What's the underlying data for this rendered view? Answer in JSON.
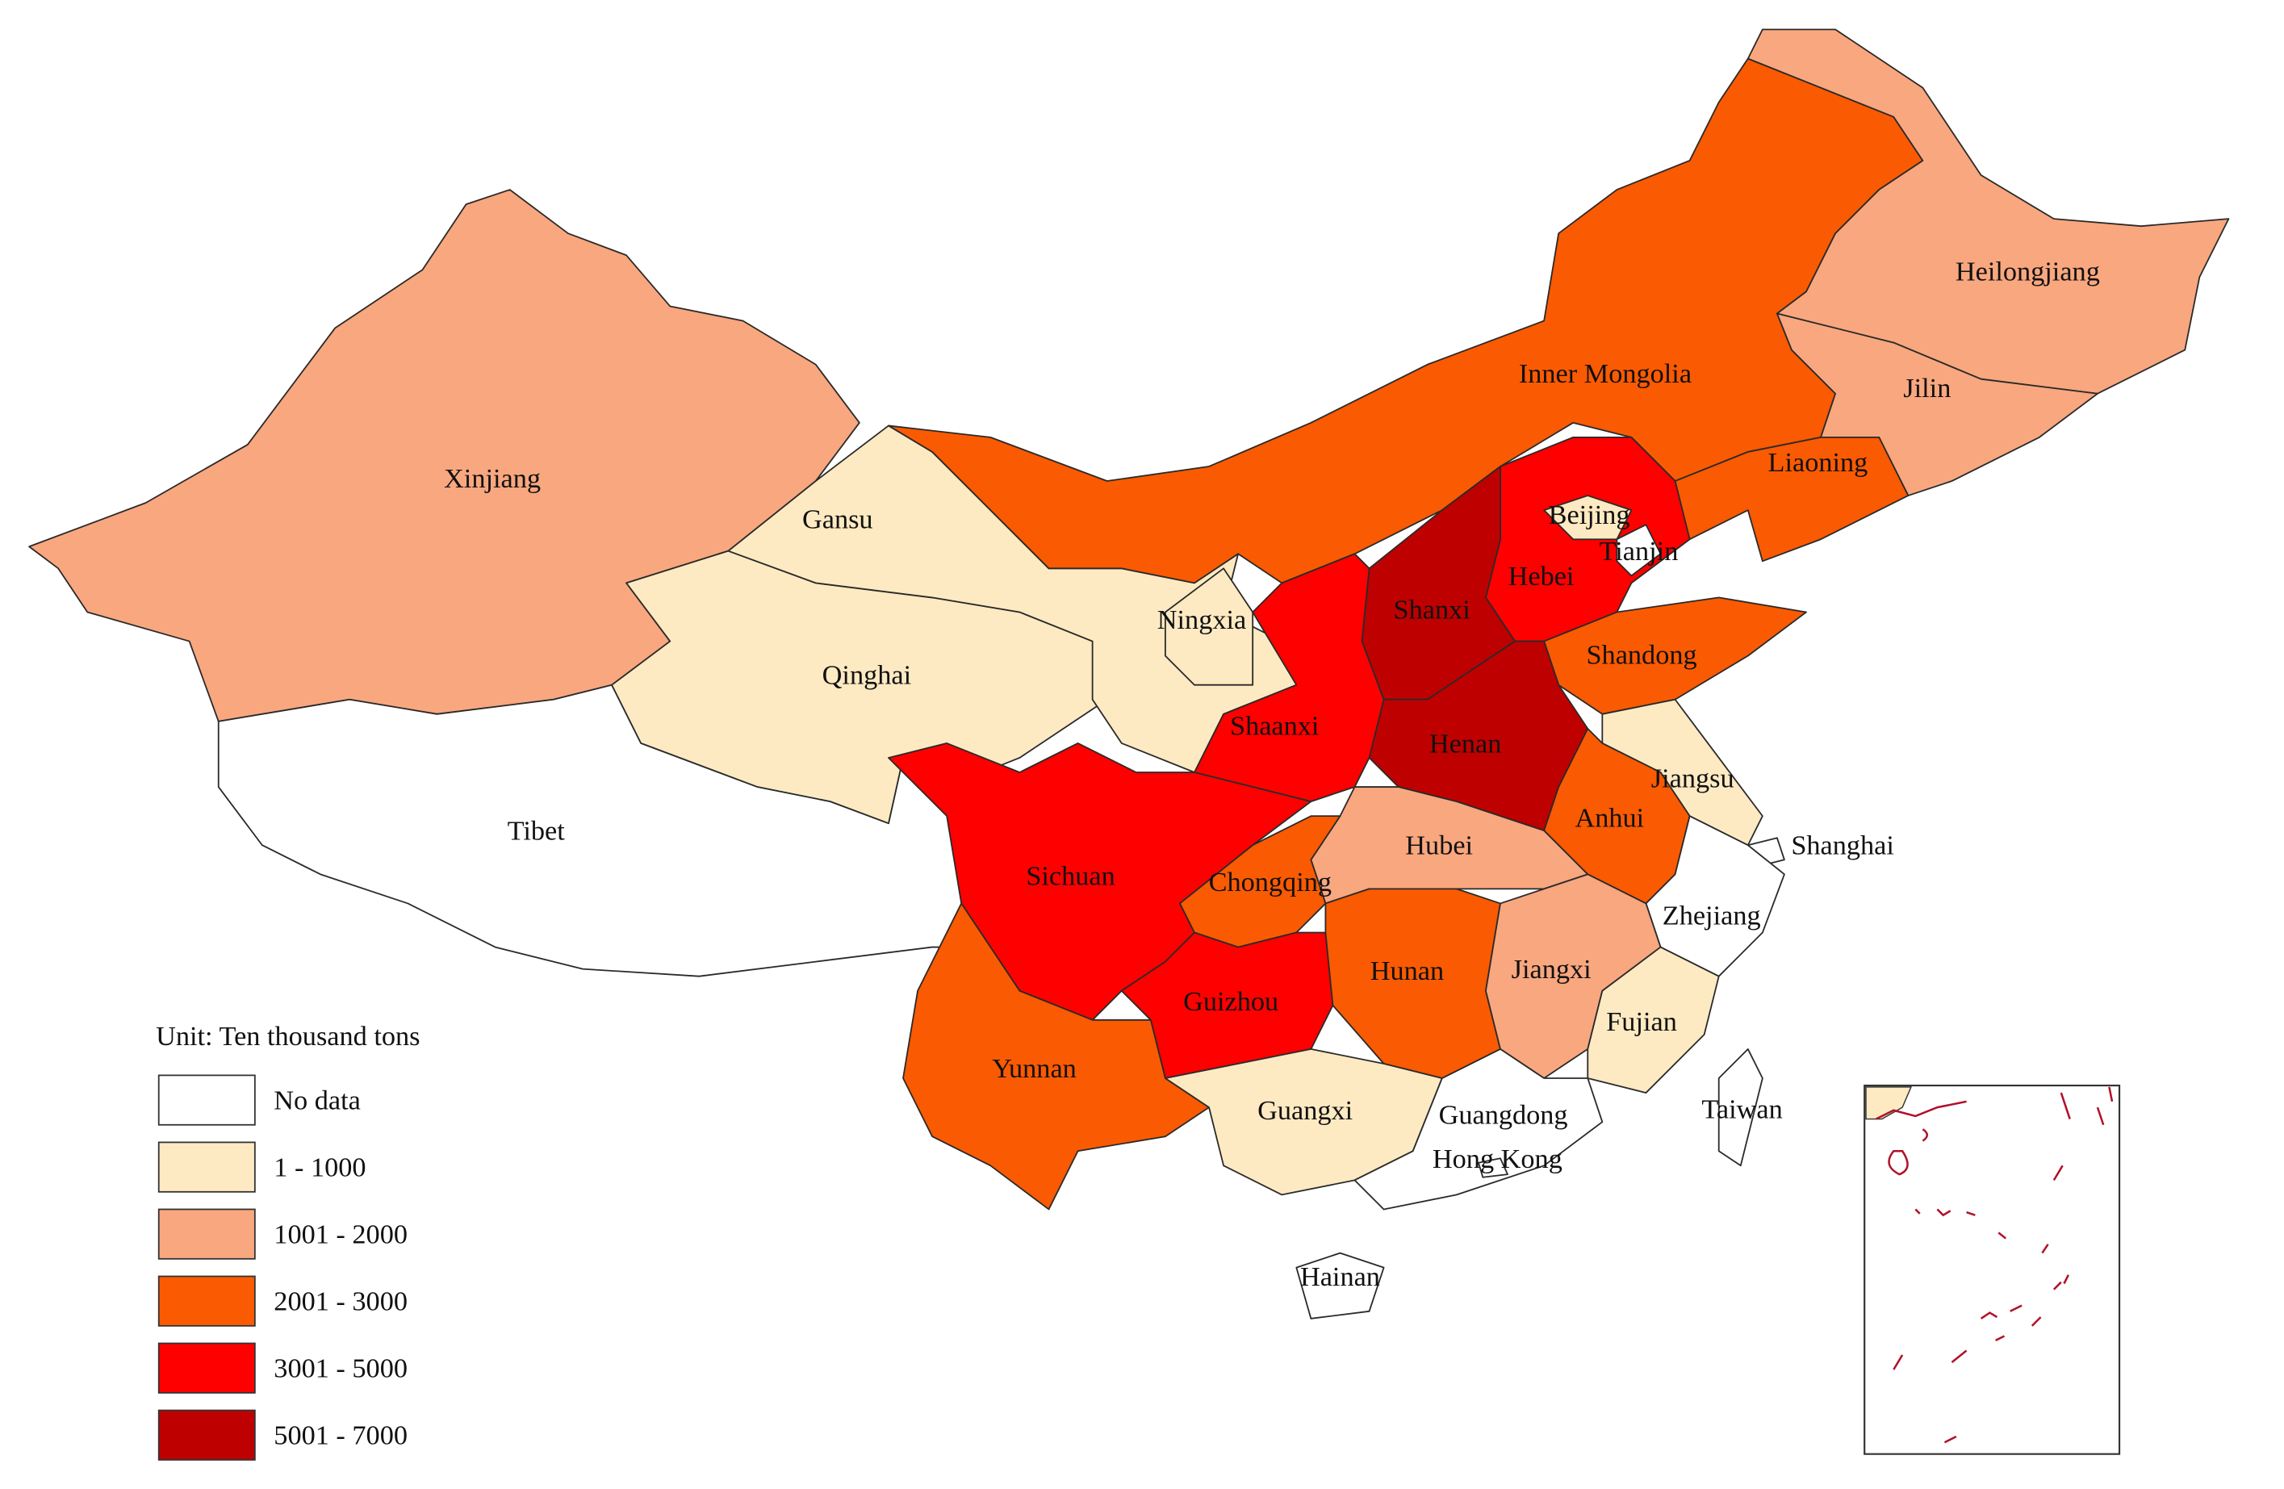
{
  "legend": {
    "title": "Unit: Ten thousand tons",
    "items": [
      {
        "label": "No data",
        "color": "#ffffff"
      },
      {
        "label": "1 - 1000",
        "color": "#feeac2"
      },
      {
        "label": "1001 - 2000",
        "color": "#f9a77f"
      },
      {
        "label": "2001 - 3000",
        "color": "#fa5a02"
      },
      {
        "label": "3001 - 5000",
        "color": "#ff0000"
      },
      {
        "label": "5001 - 7000",
        "color": "#bf0000"
      }
    ]
  },
  "regions": [
    {
      "name": "Xinjiang",
      "class": 2
    },
    {
      "name": "Tibet",
      "class": 0
    },
    {
      "name": "Qinghai",
      "class": 1
    },
    {
      "name": "Gansu",
      "class": 1
    },
    {
      "name": "Ningxia",
      "class": 1
    },
    {
      "name": "Inner Mongolia",
      "class": 3
    },
    {
      "name": "Heilongjiang",
      "class": 2
    },
    {
      "name": "Jilin",
      "class": 2
    },
    {
      "name": "Liaoning",
      "class": 3
    },
    {
      "name": "Hebei",
      "class": 4
    },
    {
      "name": "Beijing",
      "class": 1
    },
    {
      "name": "Tianjin",
      "class": 0
    },
    {
      "name": "Shanxi",
      "class": 5
    },
    {
      "name": "Shandong",
      "class": 3
    },
    {
      "name": "Henan",
      "class": 5
    },
    {
      "name": "Shaanxi",
      "class": 4
    },
    {
      "name": "Jiangsu",
      "class": 1
    },
    {
      "name": "Anhui",
      "class": 3
    },
    {
      "name": "Shanghai",
      "class": 0
    },
    {
      "name": "Zhejiang",
      "class": 0
    },
    {
      "name": "Hubei",
      "class": 2
    },
    {
      "name": "Sichuan",
      "class": 4
    },
    {
      "name": "Chongqing",
      "class": 3
    },
    {
      "name": "Guizhou",
      "class": 4
    },
    {
      "name": "Hunan",
      "class": 3
    },
    {
      "name": "Jiangxi",
      "class": 2
    },
    {
      "name": "Fujian",
      "class": 1
    },
    {
      "name": "Yunnan",
      "class": 3
    },
    {
      "name": "Guangxi",
      "class": 1
    },
    {
      "name": "Guangdong",
      "class": 0
    },
    {
      "name": "Hong Kong",
      "class": 0
    },
    {
      "name": "Hainan",
      "class": 0
    },
    {
      "name": "Taiwan",
      "class": 0
    }
  ]
}
